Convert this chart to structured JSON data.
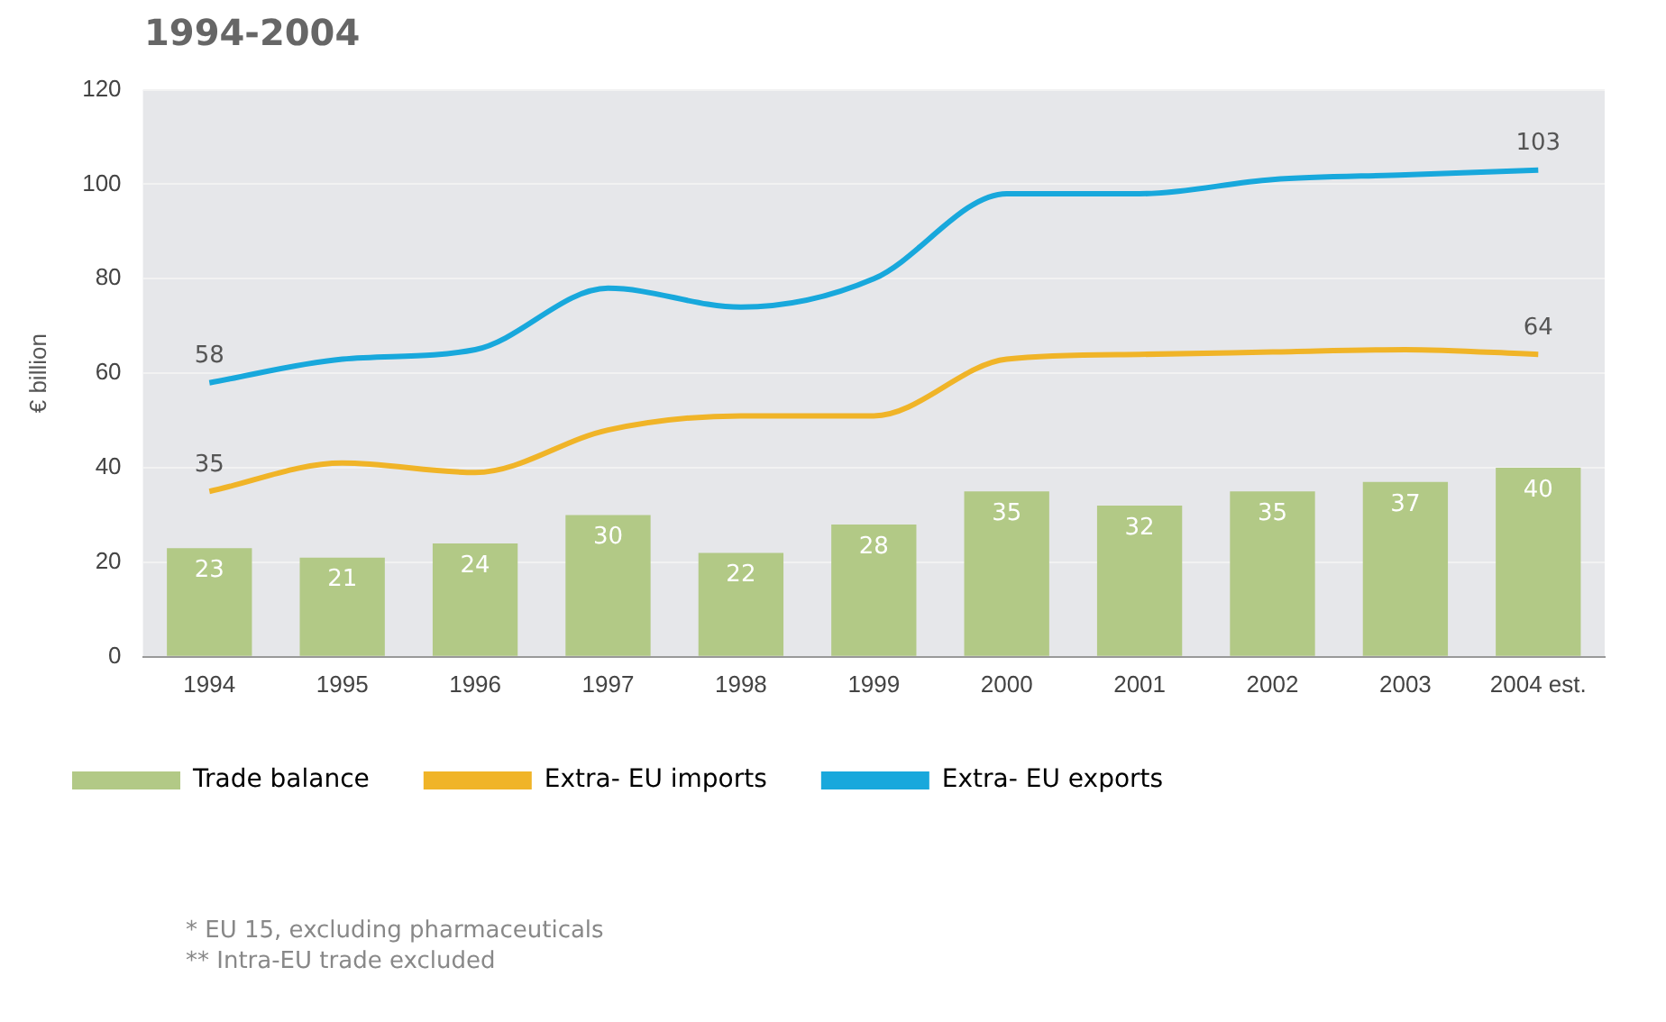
{
  "chart_data": {
    "type": "bar",
    "title": "1994-2004",
    "ylabel": "€ billion",
    "categories": [
      "1994",
      "1995",
      "1996",
      "1997",
      "1998",
      "1999",
      "2000",
      "2001",
      "2002",
      "2003",
      "2004 est."
    ],
    "series": [
      {
        "name": "Trade balance",
        "color": "#b2c986",
        "values": [
          23,
          21,
          24,
          30,
          22,
          28,
          35,
          32,
          35,
          37,
          40
        ],
        "data_labels": true
      },
      {
        "name": "Extra- EU imports",
        "type": "line",
        "color": "#f0b428",
        "values": [
          35,
          41,
          39,
          48,
          51,
          51,
          63,
          64,
          64.5,
          65,
          64
        ],
        "value_labels": [
          "35",
          null,
          null,
          null,
          null,
          null,
          null,
          null,
          null,
          null,
          "64"
        ]
      },
      {
        "name": "Extra- EU exports",
        "type": "line",
        "color": "#18a8dc",
        "values": [
          58,
          63,
          65,
          78,
          74,
          80,
          98,
          98,
          101,
          102,
          103
        ],
        "value_labels": [
          "58",
          null,
          null,
          null,
          null,
          null,
          null,
          null,
          null,
          null,
          "103"
        ]
      }
    ],
    "ylim": [
      0,
      120
    ],
    "yticks": [
      0,
      20,
      40,
      60,
      80,
      100,
      120
    ],
    "grid": "y",
    "legend": "bottom",
    "marker": "none",
    "line_style": "solid",
    "annotations": [
      "* EU 15, excluding pharmaceuticals",
      "** Intra-EU trade excluded"
    ]
  }
}
